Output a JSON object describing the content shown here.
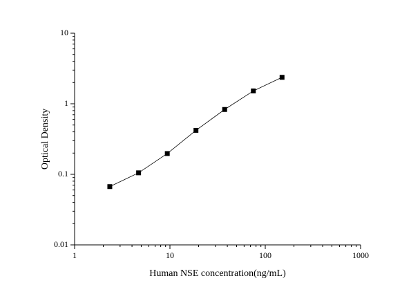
{
  "chart_data": {
    "type": "scatter",
    "x_label": "Human NSE concentration(ng/mL)",
    "y_label": "Optical Density",
    "x_scale": "log",
    "y_scale": "log",
    "connect_points": true,
    "marker": "square",
    "series": [
      {
        "color": "#000000",
        "x": [
          2.34,
          4.69,
          9.38,
          18.75,
          37.5,
          75,
          150
        ],
        "values": [
          0.067,
          0.105,
          0.197,
          0.42,
          0.83,
          1.52,
          2.37
        ]
      }
    ],
    "xlim": [
      1,
      1000
    ],
    "xticks": [
      1,
      10,
      100,
      1000
    ],
    "ylim": [
      0.01,
      10
    ],
    "yticks": [
      0.01,
      0.1,
      1,
      10
    ]
  }
}
